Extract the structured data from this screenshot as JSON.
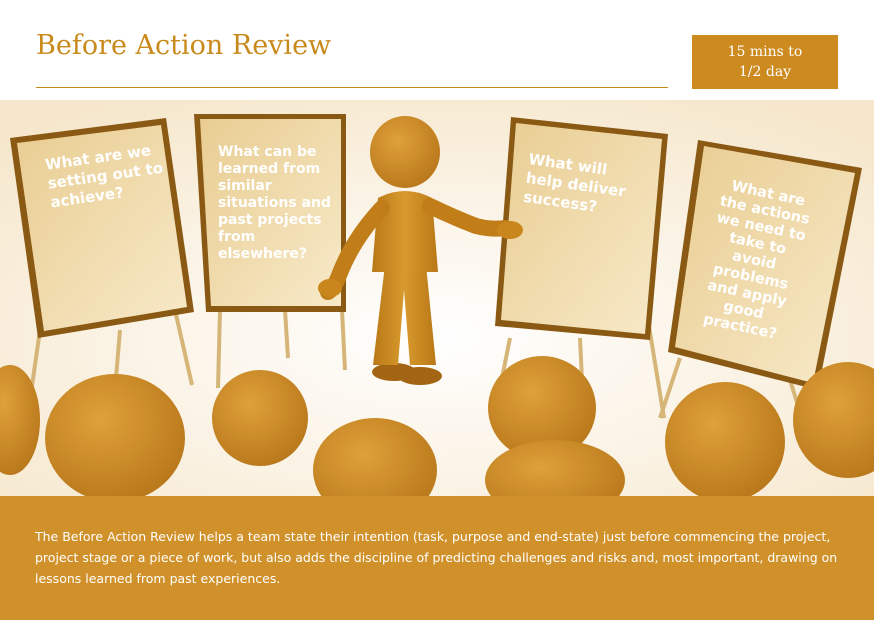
{
  "header": {
    "title": "Before Action Review",
    "duration_line1": "15 mins to",
    "duration_line2": "1/2 day"
  },
  "boards": [
    {
      "text": "What are we setting out to achieve?"
    },
    {
      "text": "What can be learned from similar situations and past projects from elsewhere?"
    },
    {
      "text": "What will help deliver success?"
    },
    {
      "text": "What are the actions we need to take to avoid problems and apply good practice?"
    }
  ],
  "description": "The Before Action Review helps a team state their intention (task, purpose and end-state) just before commencing the project, project stage or a piece of work, but also adds the discipline of predicting challenges and risks and, most important, drawing on lessons learned from past experiences.",
  "colors": {
    "accent": "#c98a1c",
    "footer": "#d1912a",
    "board_fill": "#f3dfb0",
    "board_frame": "#8a5a14",
    "figure": "#c8861c"
  }
}
